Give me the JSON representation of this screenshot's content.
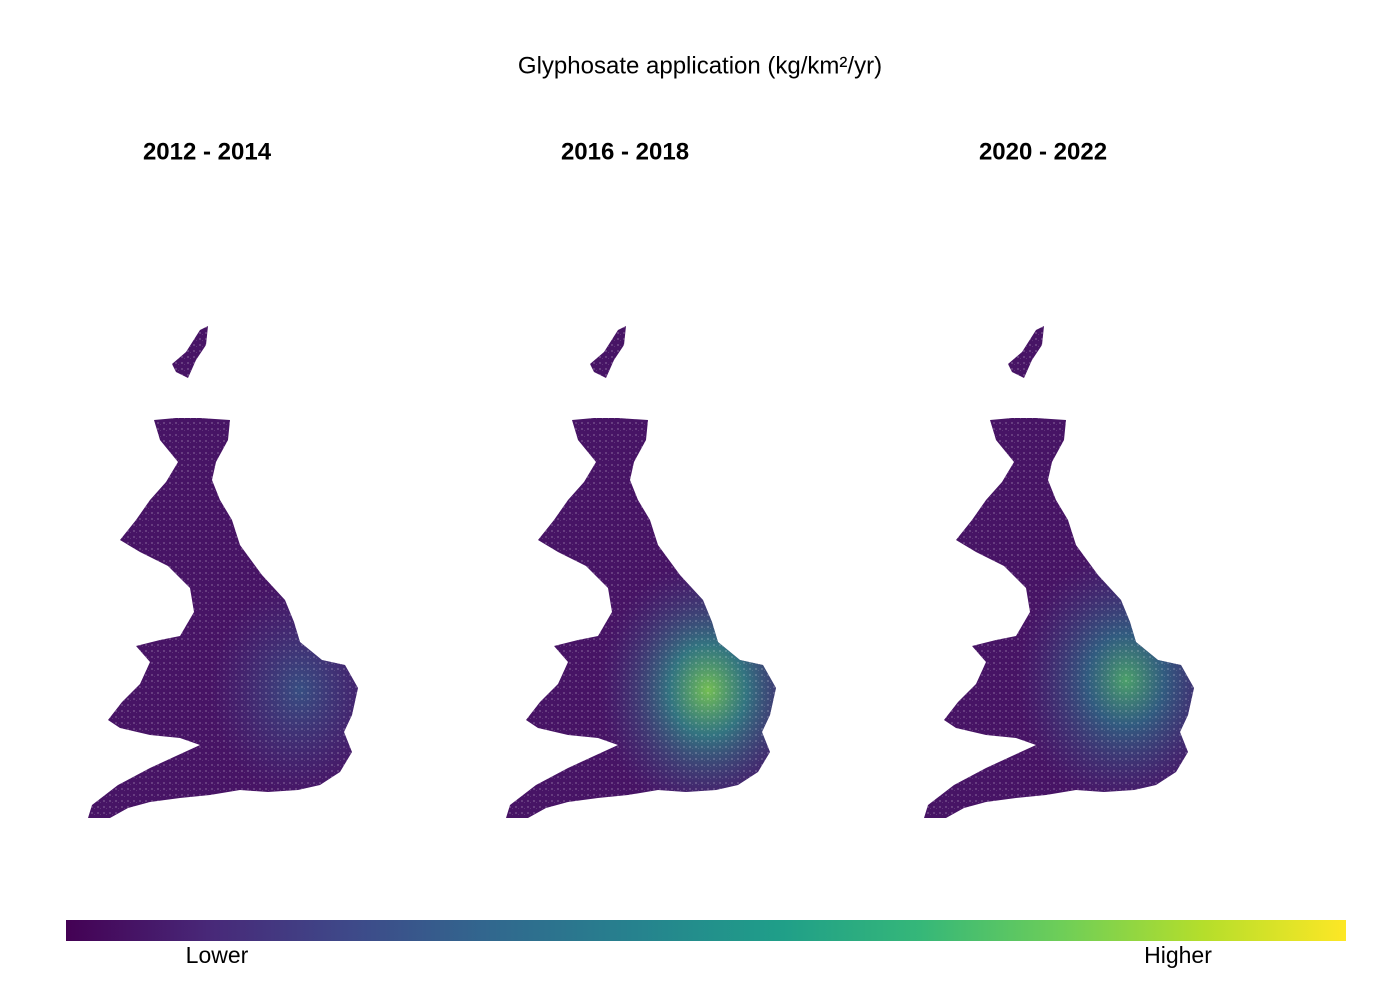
{
  "title": "Glyphosate application (kg/km²/yr)",
  "panels": [
    {
      "title": "2012 - 2014"
    },
    {
      "title": "2016 - 2018"
    },
    {
      "title": "2020 - 2022"
    }
  ],
  "legend": {
    "low_label": "Lower",
    "high_label": "Higher",
    "colors": [
      "#440154",
      "#482878",
      "#3e4989",
      "#31688e",
      "#26828e",
      "#1f9e89",
      "#35b779",
      "#6ece58",
      "#b5de2b",
      "#fde725"
    ]
  }
}
